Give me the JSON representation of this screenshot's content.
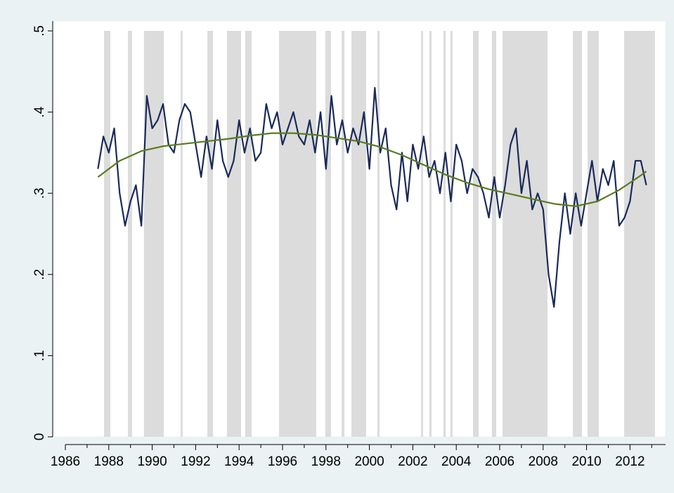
{
  "chart_data": {
    "type": "line",
    "xlim": [
      1986,
      2012.75
    ],
    "ylim": [
      0,
      0.5
    ],
    "xticks": [
      1986,
      1988,
      1990,
      1992,
      1994,
      1996,
      1998,
      2000,
      2002,
      2004,
      2006,
      2008,
      2010,
      2012
    ],
    "xminorticks": [
      1987,
      1989,
      1991,
      1993,
      1995,
      1997,
      1999,
      2001,
      2003,
      2005,
      2007,
      2009,
      2011,
      2013
    ],
    "yticks": [
      0,
      {
        "value": 0.1,
        "label": ".1"
      },
      {
        "value": 0.2,
        "label": ".2"
      },
      {
        "value": 0.3,
        "label": ".3"
      },
      {
        "value": 0.4,
        "label": ".4"
      },
      {
        "value": 0.5,
        "label": ".5"
      }
    ],
    "shaded_periods": [
      [
        1987.78,
        1988.07
      ],
      [
        1988.88,
        1989.07
      ],
      [
        1989.62,
        1990.53
      ],
      [
        1991.31,
        1991.4
      ],
      [
        1992.54,
        1992.8
      ],
      [
        1993.44,
        1994.09
      ],
      [
        1994.28,
        1994.58
      ],
      [
        1995.84,
        1997.55
      ],
      [
        1997.97,
        1998.23
      ],
      [
        1998.72,
        1998.85
      ],
      [
        1999.17,
        1999.85
      ],
      [
        2000.37,
        2000.47
      ],
      [
        2002.38,
        2002.47
      ],
      [
        2002.76,
        2002.86
      ],
      [
        2003.41,
        2003.51
      ],
      [
        2003.73,
        2003.83
      ],
      [
        2004.77,
        2005.03
      ],
      [
        2005.64,
        2005.84
      ],
      [
        2006.13,
        2008.2
      ],
      [
        2009.37,
        2009.79
      ],
      [
        2010.05,
        2010.56
      ],
      [
        2011.73,
        2013.15
      ]
    ],
    "shade_color": "#dcdcdc",
    "series": [
      {
        "color": "#1a2a5a",
        "x": [
          1987.5,
          1987.75,
          1988,
          1988.25,
          1988.5,
          1988.75,
          1989,
          1989.25,
          1989.5,
          1989.75,
          1990,
          1990.25,
          1990.5,
          1990.75,
          1991,
          1991.25,
          1991.5,
          1991.75,
          1992,
          1992.25,
          1992.5,
          1992.75,
          1993,
          1993.25,
          1993.5,
          1993.75,
          1994,
          1994.25,
          1994.5,
          1994.75,
          1995,
          1995.25,
          1995.5,
          1995.75,
          1996,
          1996.25,
          1996.5,
          1996.75,
          1997,
          1997.25,
          1997.5,
          1997.75,
          1998,
          1998.25,
          1998.5,
          1998.75,
          1999,
          1999.25,
          1999.5,
          1999.75,
          2000,
          2000.25,
          2000.5,
          2000.75,
          2001,
          2001.25,
          2001.5,
          2001.75,
          2002,
          2002.25,
          2002.5,
          2002.75,
          2003,
          2003.25,
          2003.5,
          2003.75,
          2004,
          2004.25,
          2004.5,
          2004.75,
          2005,
          2005.25,
          2005.5,
          2005.75,
          2006,
          2006.25,
          2006.5,
          2006.75,
          2007,
          2007.25,
          2007.5,
          2007.75,
          2008,
          2008.25,
          2008.5,
          2008.75,
          2009,
          2009.25,
          2009.5,
          2009.75,
          2010,
          2010.25,
          2010.5,
          2010.75,
          2011,
          2011.25,
          2011.5,
          2011.75,
          2012,
          2012.25,
          2012.5,
          2012.75
        ],
        "values": [
          0.33,
          0.37,
          0.35,
          0.38,
          0.3,
          0.26,
          0.29,
          0.31,
          0.26,
          0.42,
          0.38,
          0.39,
          0.41,
          0.36,
          0.35,
          0.39,
          0.41,
          0.4,
          0.36,
          0.32,
          0.37,
          0.33,
          0.39,
          0.34,
          0.32,
          0.34,
          0.39,
          0.35,
          0.38,
          0.34,
          0.35,
          0.41,
          0.38,
          0.4,
          0.36,
          0.38,
          0.4,
          0.37,
          0.36,
          0.39,
          0.35,
          0.4,
          0.33,
          0.42,
          0.36,
          0.39,
          0.35,
          0.38,
          0.36,
          0.4,
          0.33,
          0.43,
          0.35,
          0.38,
          0.31,
          0.28,
          0.35,
          0.29,
          0.36,
          0.33,
          0.37,
          0.32,
          0.34,
          0.3,
          0.35,
          0.29,
          0.36,
          0.34,
          0.3,
          0.33,
          0.32,
          0.3,
          0.27,
          0.32,
          0.27,
          0.31,
          0.36,
          0.38,
          0.3,
          0.34,
          0.28,
          0.3,
          0.28,
          0.2,
          0.16,
          0.24,
          0.3,
          0.25,
          0.3,
          0.26,
          0.3,
          0.34,
          0.29,
          0.33,
          0.31,
          0.34,
          0.26,
          0.27,
          0.29,
          0.34,
          0.34,
          0.31
        ]
      },
      {
        "color": "#5a7a20",
        "x": [
          1987.5,
          1988.5,
          1989.5,
          1990.5,
          1991.5,
          1992.5,
          1993.5,
          1994.5,
          1995.5,
          1996.5,
          1997.5,
          1998.5,
          1999.5,
          2000.5,
          2001.5,
          2002.5,
          2003.5,
          2004.5,
          2005.5,
          2006.5,
          2007.5,
          2008.5,
          2009.5,
          2010.5,
          2011.5,
          2012.5,
          2012.75
        ],
        "values": [
          0.32,
          0.34,
          0.352,
          0.358,
          0.361,
          0.364,
          0.367,
          0.371,
          0.374,
          0.374,
          0.372,
          0.368,
          0.364,
          0.357,
          0.347,
          0.335,
          0.323,
          0.313,
          0.305,
          0.299,
          0.293,
          0.287,
          0.284,
          0.29,
          0.304,
          0.322,
          0.327
        ]
      }
    ]
  }
}
